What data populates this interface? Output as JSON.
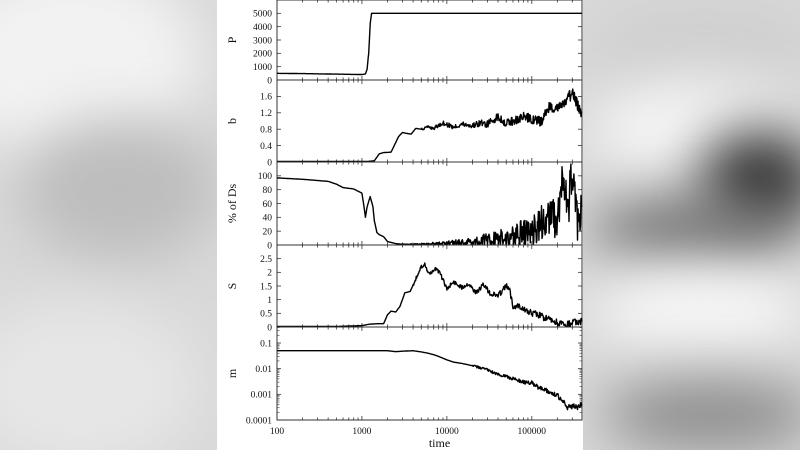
{
  "figure": {
    "xlabel": "time",
    "xscale": "log",
    "xlim": [
      100,
      390000
    ],
    "xticks": [
      {
        "value": 100,
        "label": "100"
      },
      {
        "value": 1000,
        "label": "1000"
      },
      {
        "value": 10000,
        "label": "10000"
      },
      {
        "value": 100000,
        "label": "100000"
      }
    ]
  },
  "colors": {
    "line": "#000000",
    "panel_bg": "#ffffff",
    "frame": "#333333",
    "page_bg": "#d9d9d9"
  },
  "chart_data": [
    {
      "type": "line",
      "title": "",
      "xlabel": "time",
      "ylabel": "P",
      "xscale": "log",
      "yscale": "linear",
      "ylim": [
        0,
        6000
      ],
      "yticks": [
        0,
        1000,
        2000,
        3000,
        4000,
        5000
      ],
      "yticklabels": [
        "0",
        "1000",
        "2000",
        "3000",
        "4000",
        "5000"
      ],
      "x": [
        100,
        200,
        400,
        800,
        1000,
        1100,
        1150,
        1200,
        1250,
        1300,
        2000,
        10000,
        100000,
        390000
      ],
      "y": [
        500,
        480,
        450,
        420,
        410,
        450,
        800,
        2000,
        4200,
        5000,
        5000,
        5000,
        5000,
        5000
      ]
    },
    {
      "type": "line",
      "title": "",
      "xlabel": "time",
      "ylabel": "b",
      "xscale": "log",
      "yscale": "linear",
      "ylim": [
        0,
        2.0
      ],
      "yticks": [
        0,
        0.4,
        0.8,
        1.2,
        1.6
      ],
      "yticklabels": [
        "0",
        "0.4",
        "0.8",
        "1.2",
        "1.6"
      ],
      "x": [
        100,
        1000,
        1400,
        1600,
        1800,
        2200,
        2400,
        2700,
        3000,
        3300,
        3800,
        4300,
        5000,
        6000,
        7000,
        9000,
        12000,
        15000,
        20000,
        25000,
        30000,
        40000,
        50000,
        60000,
        80000,
        100000,
        130000,
        160000,
        200000,
        250000,
        300000,
        350000,
        390000
      ],
      "y": [
        0,
        0,
        0.03,
        0.2,
        0.23,
        0.24,
        0.4,
        0.62,
        0.72,
        0.7,
        0.68,
        0.82,
        0.8,
        0.85,
        0.82,
        0.95,
        0.85,
        0.92,
        0.88,
        0.95,
        0.92,
        1.1,
        0.95,
        1.0,
        1.1,
        1.05,
        0.98,
        1.35,
        1.3,
        1.45,
        1.7,
        1.35,
        1.2
      ]
    },
    {
      "type": "line",
      "title": "",
      "xlabel": "time",
      "ylabel": "% of Ds",
      "xscale": "log",
      "yscale": "linear",
      "ylim": [
        0,
        120
      ],
      "yticks": [
        0,
        20,
        40,
        60,
        80,
        100
      ],
      "yticklabels": [
        "0",
        "20",
        "40",
        "60",
        "80",
        "100"
      ],
      "x": [
        100,
        200,
        400,
        500,
        600,
        800,
        1000,
        1050,
        1100,
        1150,
        1250,
        1350,
        1400,
        1500,
        1600,
        1800,
        2000,
        2500,
        3000,
        5000,
        10000,
        20000,
        40000,
        60000,
        100000,
        130000,
        160000,
        200000,
        230000,
        260000,
        300000,
        350000,
        390000
      ],
      "y": [
        97,
        95,
        92,
        88,
        83,
        81,
        75,
        58,
        40,
        55,
        70,
        55,
        35,
        18,
        15,
        12,
        5,
        2,
        1,
        1,
        3,
        5,
        8,
        12,
        20,
        30,
        45,
        35,
        95,
        50,
        90,
        40,
        55
      ]
    },
    {
      "type": "line",
      "title": "",
      "xlabel": "time",
      "ylabel": "S",
      "xscale": "log",
      "yscale": "linear",
      "ylim": [
        0,
        3.0
      ],
      "yticks": [
        0,
        0.5,
        1,
        1.5,
        2,
        2.5
      ],
      "yticklabels": [
        "0",
        "0.5",
        "1",
        "1.5",
        "2",
        "2.5"
      ],
      "x": [
        100,
        500,
        1000,
        1200,
        1500,
        1800,
        2000,
        2200,
        2500,
        2800,
        3200,
        3700,
        4300,
        5000,
        5500,
        6000,
        6500,
        7500,
        8500,
        10000,
        12000,
        15000,
        18000,
        22000,
        27000,
        33000,
        40000,
        50000,
        55000,
        60000,
        70000,
        90000,
        120000,
        150000,
        200000,
        250000,
        300000,
        390000
      ],
      "y": [
        0,
        0.02,
        0.05,
        0.1,
        0.12,
        0.12,
        0.45,
        0.58,
        0.55,
        0.75,
        1.25,
        1.3,
        1.75,
        2.2,
        2.3,
        2.0,
        1.95,
        2.15,
        1.9,
        1.4,
        1.65,
        1.45,
        1.6,
        1.25,
        1.55,
        1.2,
        1.15,
        1.5,
        1.35,
        0.75,
        0.8,
        0.55,
        0.45,
        0.3,
        0.15,
        0.05,
        0.15,
        0.2
      ]
    },
    {
      "type": "line",
      "title": "",
      "xlabel": "time",
      "ylabel": "m",
      "xscale": "log",
      "yscale": "log",
      "ylim": [
        0.0001,
        0.42
      ],
      "yticks": [
        0.0001,
        0.001,
        0.01,
        0.1
      ],
      "yticklabels": [
        "0.0001",
        "0.001",
        "0.01",
        "0.1"
      ],
      "x": [
        100,
        1000,
        2000,
        2500,
        3000,
        4000,
        5000,
        6000,
        7000,
        8000,
        10000,
        12000,
        15000,
        20000,
        30000,
        40000,
        50000,
        60000,
        70000,
        80000,
        100000,
        120000,
        150000,
        180000,
        200000,
        230000,
        260000,
        300000,
        350000,
        390000
      ],
      "y": [
        0.05,
        0.05,
        0.05,
        0.046,
        0.048,
        0.05,
        0.045,
        0.04,
        0.035,
        0.03,
        0.022,
        0.018,
        0.016,
        0.013,
        0.009,
        0.006,
        0.005,
        0.004,
        0.0035,
        0.003,
        0.0028,
        0.0018,
        0.0014,
        0.001,
        0.0009,
        0.0006,
        0.0003,
        0.00035,
        0.0003,
        0.0004
      ]
    }
  ]
}
